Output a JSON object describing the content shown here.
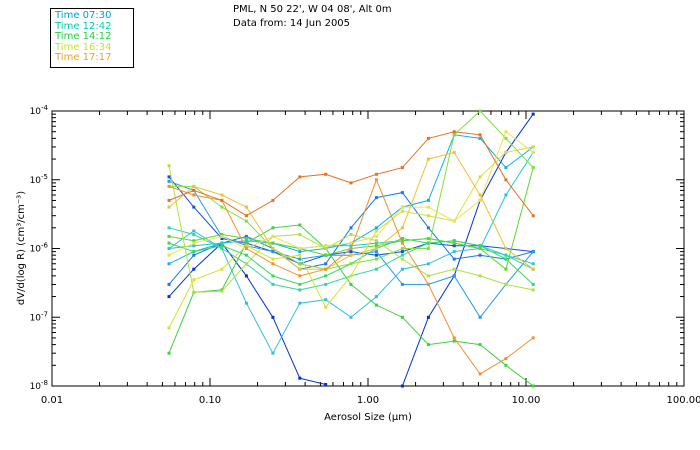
{
  "header": {
    "location": "PML, N 50 22', W 04 08', Alt 0m",
    "date": "Data from: 14 Jun 2005"
  },
  "chart_data": {
    "type": "line",
    "xscale": "log",
    "yscale": "log",
    "xlim": [
      0.01,
      100
    ],
    "ylim": [
      1e-08,
      0.0001
    ],
    "xlabel": "Aerosol Size (μm)",
    "ylabel": "dV/d(log R) (cm³/cm⁻³)",
    "x_tick_labels": [
      "0.01",
      "0.10",
      "1.00",
      "10.00",
      "100.00"
    ],
    "y_tick_labels": [
      {
        "base": "10",
        "exp": "-8"
      },
      {
        "base": "10",
        "exp": "-7"
      },
      {
        "base": "10",
        "exp": "-6"
      },
      {
        "base": "10",
        "exp": "-5"
      },
      {
        "base": "10",
        "exp": "-4"
      }
    ],
    "x": [
      0.055,
      0.079,
      0.119,
      0.17,
      0.25,
      0.37,
      0.54,
      0.78,
      1.13,
      1.65,
      2.41,
      3.51,
      5.12,
      7.46,
      11.1
    ],
    "legend": [
      {
        "label": "Time 07:30",
        "color": "#00a0e0"
      },
      {
        "label": "Time 12:42",
        "color": "#00d0b0"
      },
      {
        "label": "Time 14:12",
        "color": "#20d040"
      },
      {
        "label": "Time 16:34",
        "color": "#c8e030"
      },
      {
        "label": "Time 17:17",
        "color": "#f0a020"
      }
    ],
    "series": [
      {
        "color": "#0030d0",
        "values": [
          2e-07,
          5e-07,
          1.2e-06,
          4e-07,
          1e-07,
          1.3e-08,
          1.05e-08,
          null,
          null,
          1e-08,
          1e-07,
          4e-07,
          5e-06,
          2.5e-05,
          9e-05
        ]
      },
      {
        "color": "#1050e0",
        "values": [
          1.1e-05,
          4e-06,
          1.4e-06,
          1.2e-06,
          9e-07,
          6e-07,
          8e-07,
          9e-07,
          8e-07,
          9e-07,
          1.2e-06,
          1.1e-06,
          1.1e-06,
          1e-06,
          9e-07
        ]
      },
      {
        "color": "#1878e8",
        "values": [
          3e-07,
          8e-07,
          1.2e-06,
          1.5e-06,
          1e-06,
          5e-07,
          6e-07,
          2e-06,
          5.5e-06,
          6.5e-06,
          2e-06,
          7e-07,
          8e-07,
          7e-07,
          9e-07
        ]
      },
      {
        "color": "#2098f0",
        "values": [
          9.5e-06,
          7e-06,
          1.5e-06,
          1.1e-06,
          9e-07,
          7e-07,
          8e-07,
          8e-07,
          9e-07,
          3e-07,
          3e-07,
          4e-07,
          1e-07,
          3e-07,
          9e-07
        ]
      },
      {
        "color": "#10b0e8",
        "values": [
          6e-07,
          9e-07,
          1.2e-06,
          1.3e-06,
          1.2e-06,
          9e-07,
          1e-06,
          1.2e-06,
          2e-06,
          4e-06,
          5e-06,
          4.5e-05,
          4e-05,
          1.5e-05,
          3e-05
        ]
      },
      {
        "color": "#20c8e0",
        "values": [
          1e-06,
          1.1e-06,
          1.2e-06,
          1.3e-06,
          1.2e-06,
          1e-06,
          1.1e-06,
          1.1e-06,
          1.2e-06,
          1.3e-06,
          1.4e-06,
          1.2e-06,
          1e-06,
          6e-06,
          2.5e-05
        ]
      },
      {
        "color": "#30c0d8",
        "values": [
          1e-06,
          1.8e-06,
          1e-06,
          1.6e-07,
          3e-08,
          1.6e-07,
          1.8e-07,
          1e-07,
          2e-07,
          5e-07,
          6e-07,
          9e-07,
          1e-06,
          8e-07,
          6e-07
        ]
      },
      {
        "color": "#30d8a0",
        "values": [
          2e-06,
          1.6e-06,
          1e-06,
          6e-07,
          3e-07,
          2.5e-07,
          3e-07,
          4e-07,
          5e-07,
          8e-07,
          1.2e-06,
          1.3e-06,
          1.1e-06,
          8e-07,
          5e-07
        ]
      },
      {
        "color": "#38d860",
        "values": [
          1.2e-06,
          9e-07,
          1.1e-06,
          8e-07,
          4e-07,
          3e-07,
          4e-07,
          6e-07,
          1e-06,
          1.4e-06,
          1.2e-06,
          1.3e-06,
          1.1e-06,
          7e-07,
          3e-07
        ]
      },
      {
        "color": "#40d040",
        "values": [
          3e-08,
          2.3e-07,
          2.5e-07,
          1.2e-06,
          2e-06,
          2.2e-06,
          1e-06,
          3e-07,
          1.5e-07,
          1e-07,
          4e-08,
          4.5e-08,
          4e-08,
          2e-08,
          1e-08
        ]
      },
      {
        "color": "#58d830",
        "values": [
          1.5e-06,
          1.3e-06,
          1.6e-06,
          1.4e-06,
          1.2e-06,
          1e-06,
          8e-07,
          1e-06,
          1.1e-06,
          1.3e-06,
          1.4e-06,
          1.2e-06,
          1e-06,
          5e-07,
          1.5e-05
        ]
      },
      {
        "color": "#80e040",
        "values": [
          8e-06,
          8e-06,
          4e-06,
          2.5e-06,
          1e-06,
          6e-07,
          5e-07,
          6e-07,
          7e-07,
          1e-06,
          1e-06,
          4.5e-05,
          0.0001,
          4e-05,
          1.5e-05
        ]
      },
      {
        "color": "#b0e040",
        "values": [
          1.6e-05,
          2.3e-07,
          2.4e-07,
          6e-07,
          1.5e-06,
          1.6e-06,
          1e-06,
          1.6e-06,
          1.3e-06,
          7e-07,
          4e-07,
          5e-07,
          4e-07,
          3e-07,
          2.5e-07
        ]
      },
      {
        "color": "#d8e030",
        "values": [
          7e-08,
          3.5e-07,
          5e-07,
          1.1e-06,
          7e-07,
          8e-07,
          1.4e-07,
          4e-07,
          1.8e-06,
          3.5e-06,
          3e-06,
          2.5e-06,
          1.1e-05,
          2.5e-05,
          3e-05
        ]
      },
      {
        "color": "#f0e050",
        "values": [
          8e-07,
          1.2e-06,
          1.5e-06,
          1e-06,
          1.5e-06,
          1e-06,
          1.1e-06,
          1.2e-06,
          1.5e-06,
          4e-06,
          4e-06,
          2.5e-06,
          5e-06,
          5e-05,
          2.5e-05
        ]
      },
      {
        "color": "#f0c030",
        "values": [
          4e-06,
          8e-06,
          6e-06,
          4e-06,
          1e-06,
          5e-07,
          5e-07,
          8e-07,
          1e-06,
          2e-06,
          2e-05,
          2.5e-05,
          6e-06,
          1e-06,
          5e-07
        ]
      },
      {
        "color": "#f09030",
        "values": [
          8e-06,
          6e-06,
          5e-06,
          1e-06,
          6e-07,
          4e-07,
          5e-07,
          1e-06,
          1e-05,
          1.2e-06,
          3e-07,
          5e-08,
          1.5e-08,
          2.5e-08,
          5e-08
        ]
      },
      {
        "color": "#e87020",
        "values": [
          5e-06,
          7e-06,
          5e-06,
          3e-06,
          5e-06,
          1.1e-05,
          1.2e-05,
          9e-06,
          1.2e-05,
          1.5e-05,
          4e-05,
          5e-05,
          4.5e-05,
          1e-05,
          3e-06
        ]
      }
    ]
  }
}
